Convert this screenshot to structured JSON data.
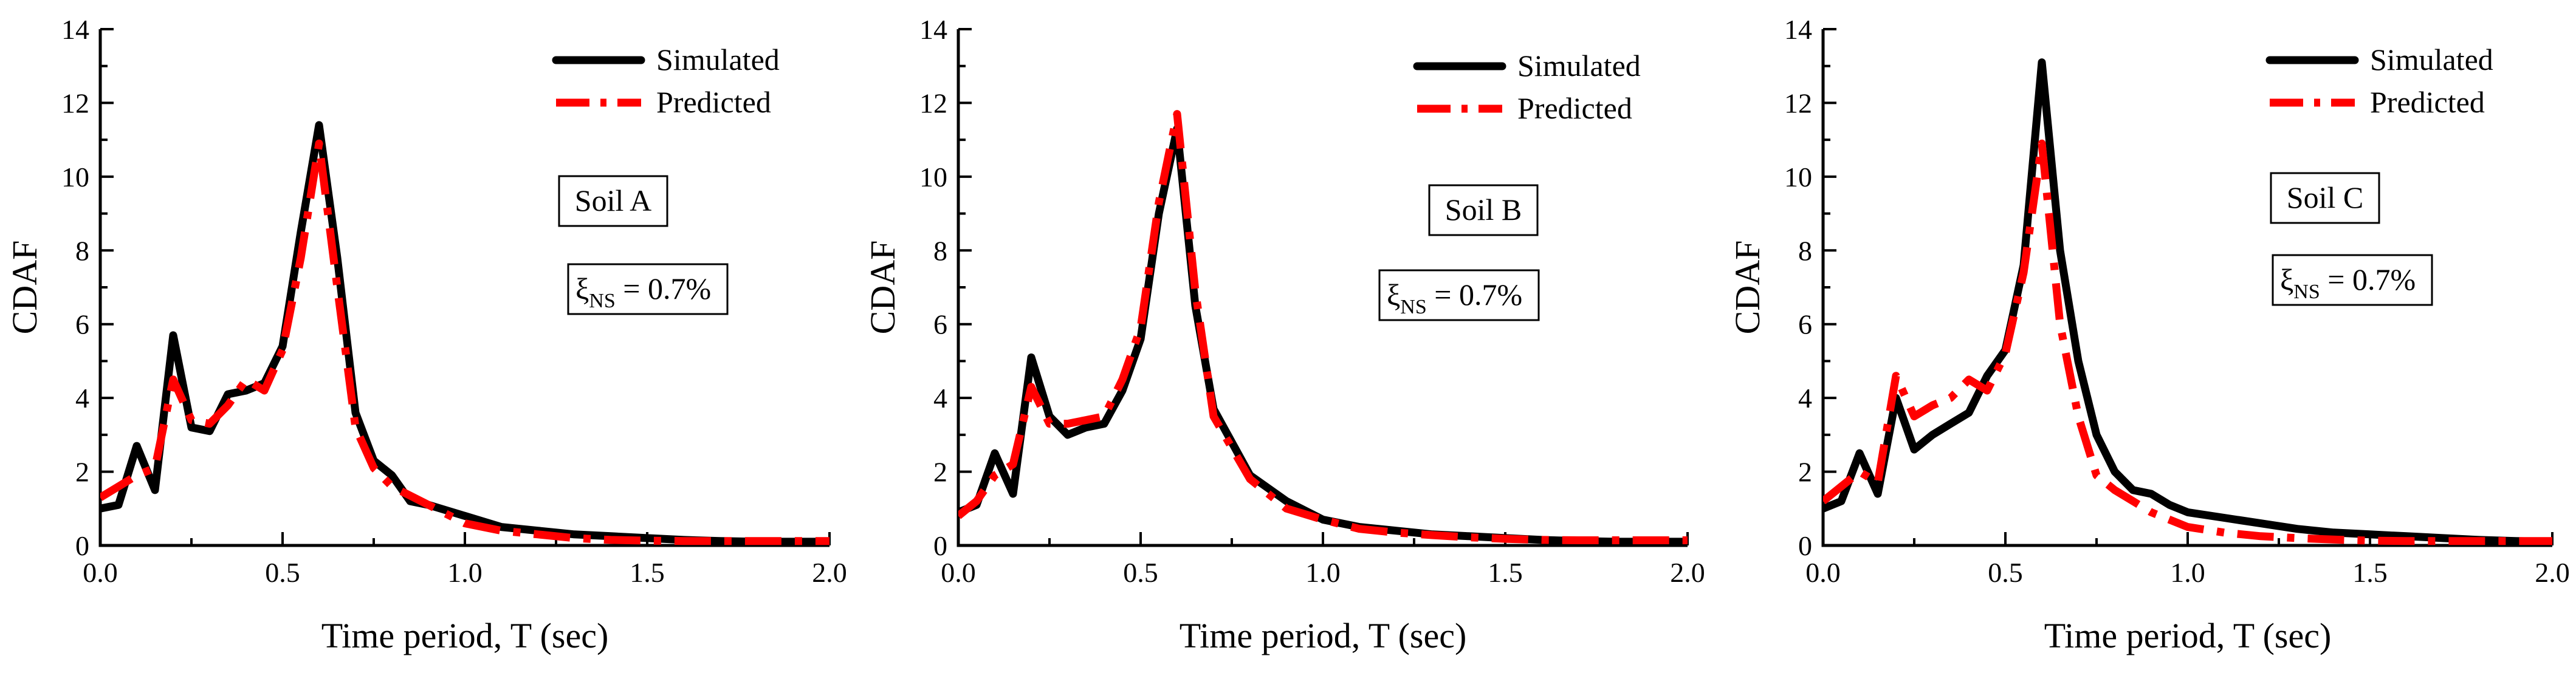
{
  "chart_data": [
    {
      "type": "line",
      "xlabel": "Time period, T (sec)",
      "ylabel": "CDAF",
      "xlim": [
        0.0,
        2.0
      ],
      "ylim": [
        0,
        14
      ],
      "xticks": [
        "0.0",
        "0.5",
        "1.0",
        "1.5",
        "2.0"
      ],
      "yticks": [
        "0",
        "2",
        "4",
        "6",
        "8",
        "10",
        "12",
        "14"
      ],
      "soil_label": "Soil A",
      "damping_symbol": "ξ",
      "damping_subscript": "NS",
      "damping_value": " = 0.7%",
      "series": [
        {
          "name": "Simulated",
          "color": "#000000",
          "x": [
            0.0,
            0.05,
            0.1,
            0.15,
            0.2,
            0.25,
            0.3,
            0.35,
            0.4,
            0.45,
            0.5,
            0.55,
            0.6,
            0.65,
            0.7,
            0.75,
            0.8,
            0.85,
            0.9,
            1.0,
            1.1,
            1.2,
            1.3,
            1.4,
            1.5,
            1.6,
            1.7,
            1.8,
            1.9,
            2.0
          ],
          "values": [
            1.0,
            1.1,
            2.7,
            1.5,
            5.7,
            3.2,
            3.1,
            4.1,
            4.2,
            4.4,
            5.4,
            8.5,
            11.4,
            7.8,
            3.6,
            2.3,
            1.9,
            1.2,
            1.1,
            0.8,
            0.5,
            0.4,
            0.3,
            0.25,
            0.2,
            0.15,
            0.12,
            0.1,
            0.1,
            0.1
          ]
        },
        {
          "name": "Predicted",
          "color": "#ff0000",
          "x": [
            0.0,
            0.05,
            0.1,
            0.15,
            0.2,
            0.25,
            0.3,
            0.35,
            0.4,
            0.45,
            0.5,
            0.55,
            0.6,
            0.65,
            0.7,
            0.75,
            0.8,
            0.9,
            1.0,
            1.1,
            1.2,
            1.3,
            1.4,
            1.5,
            1.6,
            1.7,
            1.8,
            1.9,
            2.0
          ],
          "values": [
            1.3,
            1.6,
            1.9,
            2.1,
            4.5,
            3.4,
            3.3,
            3.8,
            4.5,
            4.2,
            5.3,
            7.8,
            10.9,
            7.0,
            3.2,
            2.1,
            1.6,
            1.1,
            0.6,
            0.4,
            0.3,
            0.2,
            0.15,
            0.13,
            0.12,
            0.12,
            0.12,
            0.12,
            0.12
          ]
        }
      ]
    },
    {
      "type": "line",
      "xlabel": "Time period, T (sec)",
      "ylabel": "CDAF",
      "xlim": [
        0.0,
        2.0
      ],
      "ylim": [
        0,
        14
      ],
      "xticks": [
        "0.0",
        "0.5",
        "1.0",
        "1.5",
        "2.0"
      ],
      "yticks": [
        "0",
        "2",
        "4",
        "6",
        "8",
        "10",
        "12",
        "14"
      ],
      "soil_label": "Soil B",
      "damping_symbol": "ξ",
      "damping_subscript": "NS",
      "damping_value": " = 0.7%",
      "series": [
        {
          "name": "Simulated",
          "color": "#000000",
          "x": [
            0.0,
            0.05,
            0.1,
            0.15,
            0.2,
            0.25,
            0.3,
            0.35,
            0.4,
            0.45,
            0.5,
            0.55,
            0.6,
            0.65,
            0.7,
            0.8,
            0.9,
            1.0,
            1.1,
            1.2,
            1.3,
            1.4,
            1.5,
            1.6,
            1.7,
            1.8,
            1.9,
            2.0
          ],
          "values": [
            0.9,
            1.1,
            2.5,
            1.4,
            5.1,
            3.5,
            3.0,
            3.2,
            3.3,
            4.2,
            5.6,
            9.0,
            11.3,
            6.5,
            3.7,
            1.9,
            1.2,
            0.7,
            0.5,
            0.4,
            0.3,
            0.25,
            0.2,
            0.15,
            0.12,
            0.1,
            0.1,
            0.1
          ]
        },
        {
          "name": "Predicted",
          "color": "#ff0000",
          "x": [
            0.0,
            0.05,
            0.1,
            0.15,
            0.2,
            0.25,
            0.3,
            0.35,
            0.4,
            0.45,
            0.5,
            0.55,
            0.6,
            0.65,
            0.7,
            0.8,
            0.9,
            1.0,
            1.1,
            1.2,
            1.3,
            1.4,
            1.5,
            1.6,
            1.7,
            1.8,
            1.9,
            2.0
          ],
          "values": [
            0.8,
            1.2,
            1.9,
            2.2,
            4.3,
            3.3,
            3.3,
            3.4,
            3.5,
            4.5,
            5.9,
            9.3,
            11.7,
            6.9,
            3.5,
            1.8,
            1.0,
            0.7,
            0.45,
            0.35,
            0.28,
            0.22,
            0.18,
            0.15,
            0.14,
            0.14,
            0.14,
            0.14
          ]
        }
      ]
    },
    {
      "type": "line",
      "xlabel": "Time period, T (sec)",
      "ylabel": "CDAF",
      "xlim": [
        0.0,
        2.0
      ],
      "ylim": [
        0,
        14
      ],
      "xticks": [
        "0.0",
        "0.5",
        "1.0",
        "1.5",
        "2.0"
      ],
      "yticks": [
        "0",
        "2",
        "4",
        "6",
        "8",
        "10",
        "12",
        "14"
      ],
      "soil_label": "Soil C",
      "damping_symbol": "ξ",
      "damping_subscript": "NS",
      "damping_value": " = 0.7%",
      "series": [
        {
          "name": "Simulated",
          "color": "#000000",
          "x": [
            0.0,
            0.05,
            0.1,
            0.15,
            0.2,
            0.25,
            0.3,
            0.35,
            0.4,
            0.45,
            0.5,
            0.55,
            0.6,
            0.65,
            0.7,
            0.75,
            0.8,
            0.85,
            0.9,
            0.95,
            1.0,
            1.1,
            1.2,
            1.3,
            1.4,
            1.5,
            1.6,
            1.7,
            1.8,
            1.9,
            2.0
          ],
          "values": [
            1.0,
            1.2,
            2.5,
            1.4,
            4.0,
            2.6,
            3.0,
            3.3,
            3.6,
            4.6,
            5.3,
            7.6,
            13.1,
            8.0,
            5.0,
            3.0,
            2.0,
            1.5,
            1.4,
            1.1,
            0.9,
            0.75,
            0.6,
            0.45,
            0.35,
            0.3,
            0.25,
            0.2,
            0.15,
            0.12,
            0.1
          ]
        },
        {
          "name": "Predicted",
          "color": "#ff0000",
          "x": [
            0.0,
            0.05,
            0.1,
            0.15,
            0.2,
            0.25,
            0.3,
            0.35,
            0.4,
            0.45,
            0.5,
            0.55,
            0.6,
            0.65,
            0.7,
            0.75,
            0.8,
            0.85,
            0.9,
            1.0,
            1.1,
            1.2,
            1.3,
            1.4,
            1.5,
            1.6,
            1.7,
            1.8,
            1.9,
            2.0
          ],
          "values": [
            1.2,
            1.6,
            2.0,
            1.7,
            4.6,
            3.5,
            3.8,
            4.0,
            4.5,
            4.2,
            5.2,
            7.4,
            10.9,
            6.0,
            3.5,
            1.9,
            1.5,
            1.2,
            0.9,
            0.5,
            0.35,
            0.25,
            0.2,
            0.16,
            0.13,
            0.12,
            0.12,
            0.12,
            0.12,
            0.12
          ]
        }
      ]
    }
  ]
}
